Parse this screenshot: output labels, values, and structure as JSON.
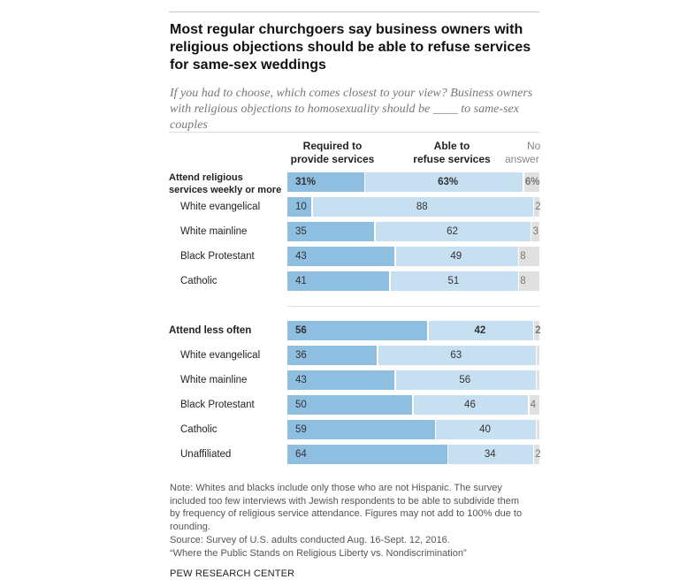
{
  "title": "Most regular churchgoers say business owners with religious objections should be able to refuse services for same-sex weddings",
  "subtitle": "If you had to choose, which comes closest to your view? Business owners with religious objections to homosexuality should be ____ to same-sex couples",
  "column_headers": {
    "required": [
      "Required to",
      "provide services"
    ],
    "refuse": [
      "Able to",
      "refuse services"
    ],
    "no_answer": [
      "No",
      "answer"
    ]
  },
  "colors": {
    "required": "#8fbfe0",
    "refuse": "#c6dff1",
    "no_answer": "#e0e0e0"
  },
  "chart_data": {
    "type": "bar",
    "stacked": true,
    "orientation": "horizontal",
    "series_names": [
      "Required to provide services",
      "Able to refuse services",
      "No answer"
    ],
    "groups": [
      {
        "rows": [
          {
            "label": [
              "Attend religious",
              "services weekly or more"
            ],
            "bold": true,
            "required": 31,
            "refuse": 63,
            "no_answer": 6,
            "labels": [
              "31%",
              "63%",
              "6%"
            ]
          },
          {
            "label": [
              "White evangelical"
            ],
            "bold": false,
            "required": 10,
            "refuse": 88,
            "no_answer": 2,
            "labels": [
              "10",
              "88",
              "2"
            ]
          },
          {
            "label": [
              "White mainline"
            ],
            "bold": false,
            "required": 35,
            "refuse": 62,
            "no_answer": 3,
            "labels": [
              "35",
              "62",
              "3"
            ]
          },
          {
            "label": [
              "Black Protestant"
            ],
            "bold": false,
            "required": 43,
            "refuse": 49,
            "no_answer": 8,
            "labels": [
              "43",
              "49",
              "8"
            ]
          },
          {
            "label": [
              "Catholic"
            ],
            "bold": false,
            "required": 41,
            "refuse": 51,
            "no_answer": 8,
            "labels": [
              "41",
              "51",
              "8"
            ]
          }
        ]
      },
      {
        "rows": [
          {
            "label": [
              "Attend less often"
            ],
            "bold": true,
            "required": 56,
            "refuse": 42,
            "no_answer": 2,
            "labels": [
              "56",
              "42",
              "2"
            ]
          },
          {
            "label": [
              "White evangelical"
            ],
            "bold": false,
            "required": 36,
            "refuse": 63,
            "no_answer": 1,
            "labels": [
              "36",
              "63",
              ""
            ]
          },
          {
            "label": [
              "White mainline"
            ],
            "bold": false,
            "required": 43,
            "refuse": 56,
            "no_answer": 1,
            "labels": [
              "43",
              "56",
              ""
            ]
          },
          {
            "label": [
              "Black Protestant"
            ],
            "bold": false,
            "required": 50,
            "refuse": 46,
            "no_answer": 4,
            "labels": [
              "50",
              "46",
              "4"
            ]
          },
          {
            "label": [
              "Catholic"
            ],
            "bold": false,
            "required": 59,
            "refuse": 40,
            "no_answer": 1,
            "labels": [
              "59",
              "40",
              ""
            ]
          },
          {
            "label": [
              "Unaffiliated"
            ],
            "bold": false,
            "required": 64,
            "refuse": 34,
            "no_answer": 2,
            "labels": [
              "64",
              "34",
              "2"
            ]
          }
        ]
      }
    ]
  },
  "note_lines": [
    "Note: Whites and blacks include only those who are not Hispanic. The survey",
    "included too few interviews with Jewish respondents to be able to subdivide them",
    "by frequency of religious service attendance. Figures may not add to 100% due to",
    "rounding.",
    "Source: Survey of U.S. adults conducted Aug. 16-Sept. 12, 2016.",
    "“Where the Public Stands on Religious Liberty vs. Nondiscrimination”"
  ],
  "footer": "PEW RESEARCH CENTER"
}
